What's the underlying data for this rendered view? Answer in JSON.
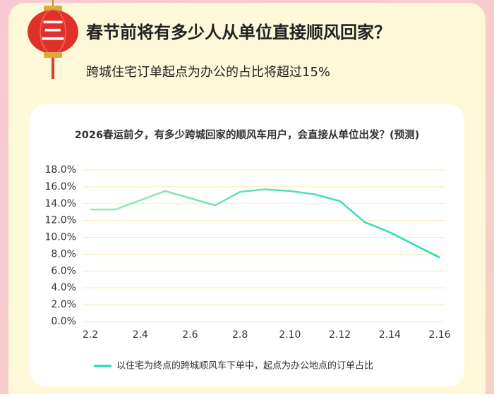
{
  "header": {
    "badge": "三",
    "title": "春节前将有多少人从单位直接顺风回家？",
    "subtitle": "跨城住宅订单起点为办公的占比将超过15%"
  },
  "chart_data": {
    "type": "line",
    "title": "2026春运前夕，有多少跨城回家的顺风车用户，会直接从单位出发？(预测)",
    "categories": [
      "2.2",
      null,
      "2.4",
      null,
      "2.6",
      null,
      "2.8",
      null,
      "2.10",
      null,
      "2.12",
      null,
      "2.14",
      null,
      "2.16"
    ],
    "series": [
      {
        "name": "以住宅为终点的跨城顺风车下单中，起点为办公地点的订单占比",
        "color": "#1fd9b5",
        "values": [
          13.3,
          13.3,
          14.4,
          15.5,
          14.65,
          13.8,
          15.4,
          15.7,
          15.5,
          15.1,
          14.3,
          11.8,
          10.6,
          9.1,
          7.6
        ]
      }
    ],
    "ylim": [
      0,
      18
    ],
    "yticks": [
      {
        "value": 0,
        "label": "0.0%"
      },
      {
        "value": 2,
        "label": "2.0%"
      },
      {
        "value": 4,
        "label": "4.0%"
      },
      {
        "value": 6,
        "label": "6.0%"
      },
      {
        "value": 8,
        "label": "8.0%"
      },
      {
        "value": 10,
        "label": "10.0%"
      },
      {
        "value": 12,
        "label": "12.0%"
      },
      {
        "value": 14,
        "label": "14.0%"
      },
      {
        "value": 16,
        "label": "16.0%"
      },
      {
        "value": 18,
        "label": "18.0%"
      }
    ],
    "grid": true,
    "legend": "bottom"
  }
}
